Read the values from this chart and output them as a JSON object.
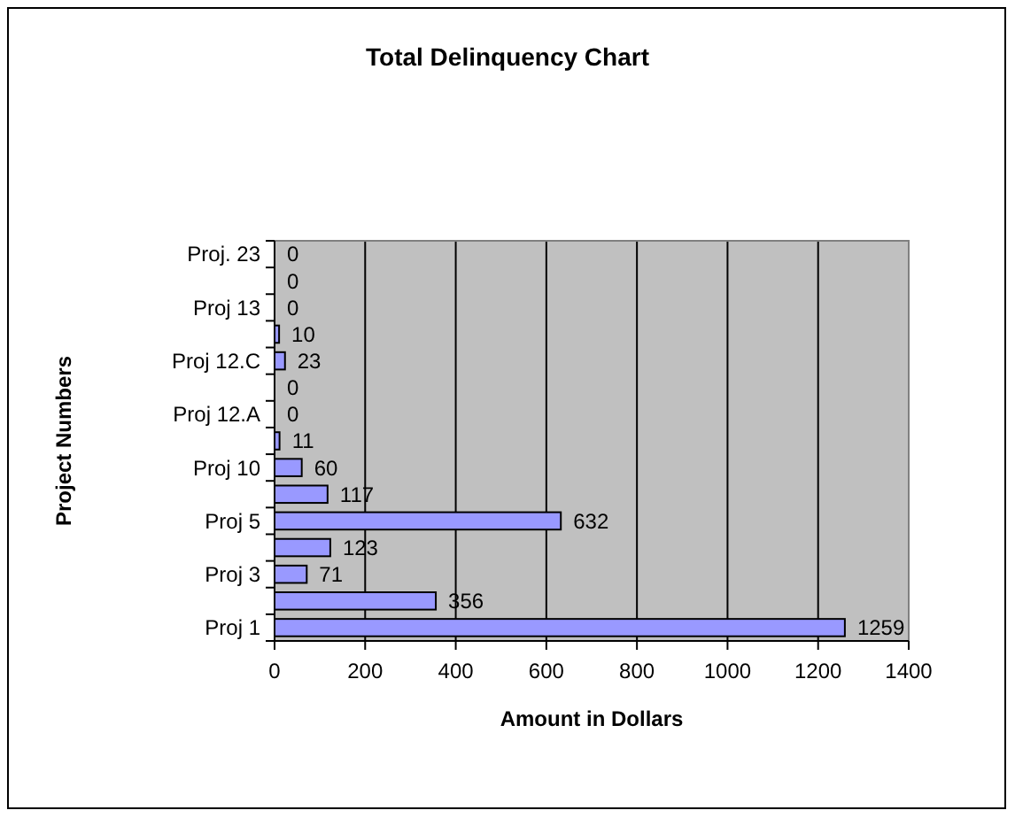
{
  "chart_data": {
    "type": "bar",
    "orientation": "horizontal",
    "title": "Total Delinquency Chart",
    "xlabel": "Amount in Dollars",
    "ylabel": "Project Numbers",
    "categories": [
      "Proj. 23",
      null,
      "Proj 13",
      null,
      "Proj 12.C",
      null,
      "Proj 12.A",
      null,
      "Proj 10",
      null,
      "Proj 5",
      null,
      "Proj 3",
      null,
      "Proj 1"
    ],
    "values": [
      0,
      0,
      0,
      10,
      23,
      0,
      0,
      11,
      60,
      117,
      632,
      123,
      71,
      356,
      1259
    ],
    "color": "#9999ff",
    "xlim": [
      0,
      1400
    ],
    "xticks": [
      0,
      200,
      400,
      600,
      800,
      1000,
      1200,
      1400
    ],
    "grid": "x",
    "data_labels": true
  }
}
